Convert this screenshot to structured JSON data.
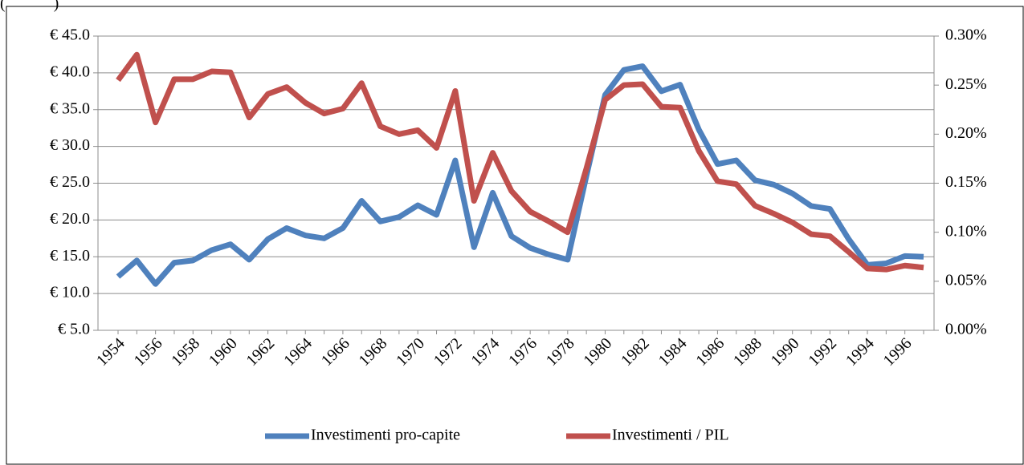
{
  "chart_data": {
    "type": "line",
    "title": "(            )",
    "categories": [
      "1954",
      null,
      "1956",
      null,
      "1958",
      null,
      "1960",
      null,
      "1962",
      null,
      "1964",
      null,
      "1966",
      null,
      "1968",
      null,
      "1970",
      null,
      "1972",
      null,
      "1974",
      null,
      "1976",
      null,
      "1978",
      null,
      "1980",
      null,
      "1982",
      null,
      "1984",
      null,
      "1986",
      null,
      "1988",
      null,
      "1990",
      null,
      "1992",
      null,
      "1994",
      null,
      "1996",
      null
    ],
    "series": [
      {
        "name": "Investimenti pro-capite",
        "color": "#4f81bd",
        "values": [
          12.3,
          14.5,
          11.3,
          14.2,
          14.5,
          15.9,
          16.7,
          14.6,
          17.4,
          18.9,
          17.9,
          17.5,
          18.9,
          22.6,
          19.8,
          20.4,
          22.0,
          20.7,
          28.1,
          16.3,
          23.7,
          17.8,
          16.2,
          15.3,
          14.6,
          26.0,
          37.0,
          40.4,
          40.9,
          37.5,
          38.4,
          32.3,
          27.6,
          28.1,
          25.4,
          24.8,
          23.6,
          21.9,
          21.5,
          17.4,
          13.9,
          14.1,
          15.1,
          15.0
        ]
      },
      {
        "name": "Investimenti / PIL",
        "color": "#c0504d",
        "axis": "y2",
        "values": [
          0.255,
          0.281,
          0.212,
          0.256,
          0.256,
          0.264,
          0.263,
          0.217,
          0.241,
          0.248,
          0.232,
          0.221,
          0.226,
          0.252,
          0.208,
          0.2,
          0.204,
          0.186,
          0.244,
          0.132,
          0.181,
          0.142,
          0.121,
          0.111,
          0.1,
          0.165,
          0.235,
          0.25,
          0.251,
          0.228,
          0.227,
          0.183,
          0.152,
          0.149,
          0.127,
          0.119,
          0.11,
          0.098,
          0.096,
          0.08,
          0.063,
          0.062,
          0.066,
          0.064
        ]
      }
    ],
    "ylim": [
      5,
      45
    ],
    "yticks": [
      {
        "value": 5,
        "label": "€ 5.0"
      },
      {
        "value": 10,
        "label": "€ 10.0"
      },
      {
        "value": 15,
        "label": "€ 15.0"
      },
      {
        "value": 20,
        "label": "€ 20.0"
      },
      {
        "value": 25,
        "label": "€ 25.0"
      },
      {
        "value": 30,
        "label": "€ 30.0"
      },
      {
        "value": 35,
        "label": "€ 35.0"
      },
      {
        "value": 40,
        "label": "€ 40.0"
      },
      {
        "value": 45,
        "label": "€ 45.0"
      }
    ],
    "y2lim": [
      0,
      0.3
    ],
    "y2ticks": [
      {
        "value": 0,
        "label": "0.00%"
      },
      {
        "value": 0.05,
        "label": "0.05%"
      },
      {
        "value": 0.1,
        "label": "0.10%"
      },
      {
        "value": 0.15,
        "label": "0.15%"
      },
      {
        "value": 0.2,
        "label": "0.20%"
      },
      {
        "value": 0.25,
        "label": "0.25%"
      },
      {
        "value": 0.3,
        "label": "0.30%"
      }
    ],
    "grid": true,
    "legend": "bottom"
  }
}
